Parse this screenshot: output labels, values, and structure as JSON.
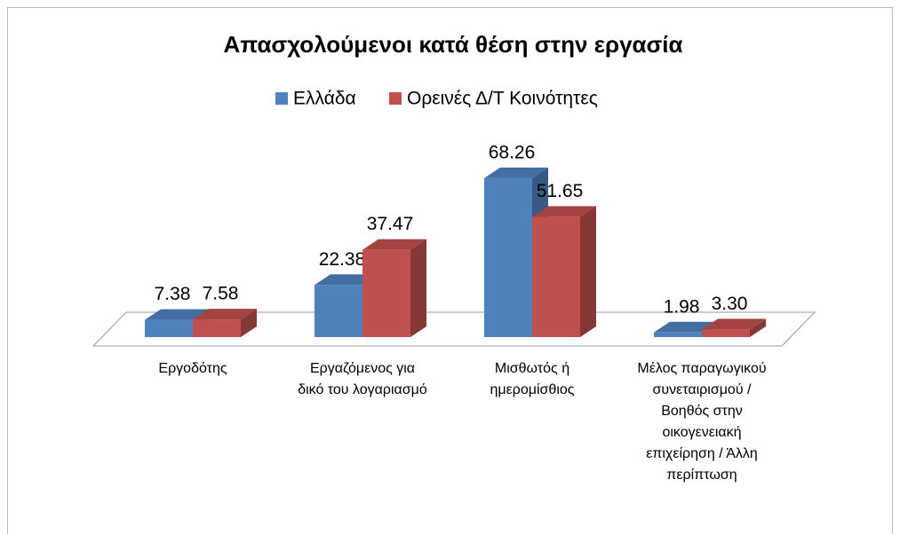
{
  "chart_data": {
    "type": "bar3d",
    "title": "Απασχολούμενοι κατά θέση στην εργασία",
    "categories": [
      "Εργοδότης",
      "Εργαζόμενος για δικό του λογαριασμό",
      "Μισθωτός ή ημερομίσθιος",
      "Μέλος παραγωγικού συνεταιρισμού / Βοηθός στην οικογενειακή επιχείρηση / Άλλη περίπτωση"
    ],
    "series": [
      {
        "name": "Ελλάδα",
        "color": "#4f81bd",
        "values": [
          7.38,
          22.38,
          68.26,
          1.98
        ]
      },
      {
        "name": "Ορεινές Δ/Τ  Κοινότητες",
        "color": "#c0504d",
        "values": [
          7.58,
          37.47,
          51.65,
          3.3
        ],
        "value_labels": [
          "7.58",
          "37.47",
          "51.65",
          "3.30"
        ]
      }
    ],
    "ylim": [
      0,
      80
    ]
  }
}
